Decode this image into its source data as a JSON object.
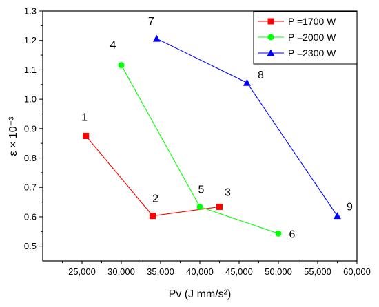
{
  "chart_data": {
    "type": "line",
    "xlabel": "Pv (J mm/s²)",
    "ylabel": "ε × 10⁻³",
    "xlim": [
      20000,
      60000
    ],
    "ylim": [
      0.45,
      1.3
    ],
    "x_ticks": [
      "25,000",
      "30,000",
      "35,000",
      "40,000",
      "45,000",
      "50,000",
      "55,000",
      "60,000"
    ],
    "y_ticks": [
      "0.5",
      "0.6",
      "0.7",
      "0.8",
      "0.9",
      "1.0",
      "1.1",
      "1.2",
      "1.3"
    ],
    "grid": false,
    "legend": "top-right",
    "series": [
      {
        "name": "P =1700 W",
        "color": "#ff0000",
        "marker": "square",
        "points": [
          {
            "x": 25500,
            "y": 0.875,
            "label": "1"
          },
          {
            "x": 34000,
            "y": 0.603,
            "label": "2"
          },
          {
            "x": 42500,
            "y": 0.634,
            "label": "3"
          }
        ]
      },
      {
        "name": "P =2000 W",
        "color": "#00ff00",
        "marker": "circle",
        "points": [
          {
            "x": 30000,
            "y": 1.116,
            "label": "4"
          },
          {
            "x": 40000,
            "y": 0.634,
            "label": "5"
          },
          {
            "x": 50000,
            "y": 0.543,
            "label": "6"
          }
        ]
      },
      {
        "name": "P =2300 W",
        "color": "#0000ff",
        "marker": "triangle",
        "points": [
          {
            "x": 34500,
            "y": 1.206,
            "label": "7"
          },
          {
            "x": 46000,
            "y": 1.056,
            "label": "8"
          },
          {
            "x": 57500,
            "y": 0.603,
            "label": "9"
          }
        ]
      }
    ]
  }
}
